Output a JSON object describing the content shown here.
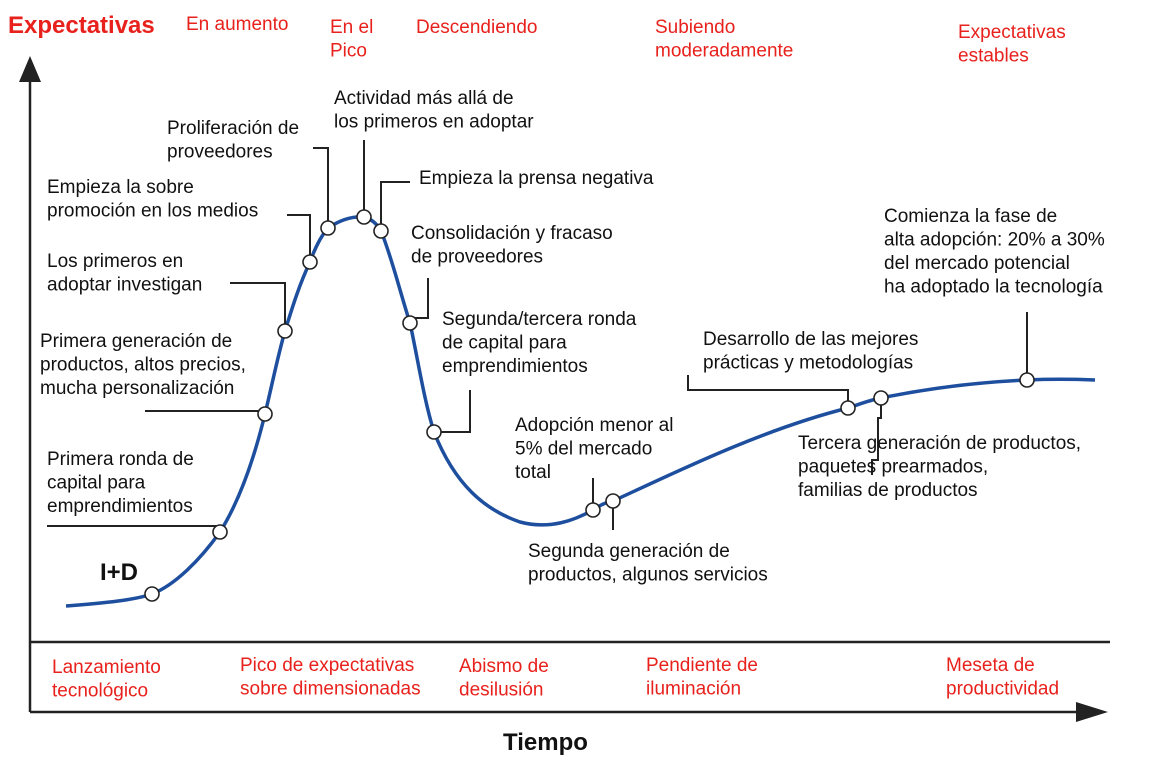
{
  "y_axis_label": "Expectativas",
  "x_axis_label": "Tiempo",
  "rd_label": "I+D",
  "phase_trends": [
    {
      "lines": [
        "En aumento"
      ]
    },
    {
      "lines": [
        "En el",
        "Pico"
      ]
    },
    {
      "lines": [
        "Descendiendo"
      ]
    },
    {
      "lines": [
        "Subiendo",
        "moderadamente"
      ]
    },
    {
      "lines": [
        "Expectativas",
        "estables"
      ]
    }
  ],
  "phases": [
    {
      "lines": [
        "Lanzamiento",
        "tecnológico"
      ]
    },
    {
      "lines": [
        "Pico de expectativas",
        "sobre dimensionadas"
      ]
    },
    {
      "lines": [
        "Abismo de",
        "desilusión"
      ]
    },
    {
      "lines": [
        "Pendiente de",
        "iluminación"
      ]
    },
    {
      "lines": [
        "Meseta de",
        "productividad"
      ]
    }
  ],
  "annotations": [
    {
      "lines": [
        "Primera ronda de",
        "capital para",
        "emprendimientos"
      ]
    },
    {
      "lines": [
        "Primera generación de",
        "productos, altos precios,",
        "mucha personalización"
      ]
    },
    {
      "lines": [
        "Los primeros en",
        "adoptar investigan"
      ]
    },
    {
      "lines": [
        "Empieza la sobre",
        "promoción en los medios"
      ]
    },
    {
      "lines": [
        "Proliferación de",
        "proveedores"
      ]
    },
    {
      "lines": [
        "Actividad más allá de",
        "los primeros en adoptar"
      ]
    },
    {
      "lines": [
        "Empieza la prensa negativa"
      ]
    },
    {
      "lines": [
        "Consolidación y fracaso",
        "de proveedores"
      ]
    },
    {
      "lines": [
        "Segunda/tercera ronda",
        "de capital para",
        "emprendimientos"
      ]
    },
    {
      "lines": [
        "Adopción menor al",
        "5% del mercado",
        "total"
      ]
    },
    {
      "lines": [
        "Segunda generación de",
        "productos, algunos servicios"
      ]
    },
    {
      "lines": [
        "Desarrollo de las mejores",
        "prácticas y metodologías"
      ]
    },
    {
      "lines": [
        "Tercera generación de productos,",
        "paquetes prearmados,",
        "familias de productos"
      ]
    },
    {
      "lines": [
        "Comienza la fase de",
        "alta adopción: 20% a 30%",
        "del mercado potencial",
        "ha adoptado la tecnología"
      ]
    }
  ],
  "colors": {
    "curve": "#1e4f9e",
    "phase_text": "#e8211c",
    "text": "#111111"
  }
}
